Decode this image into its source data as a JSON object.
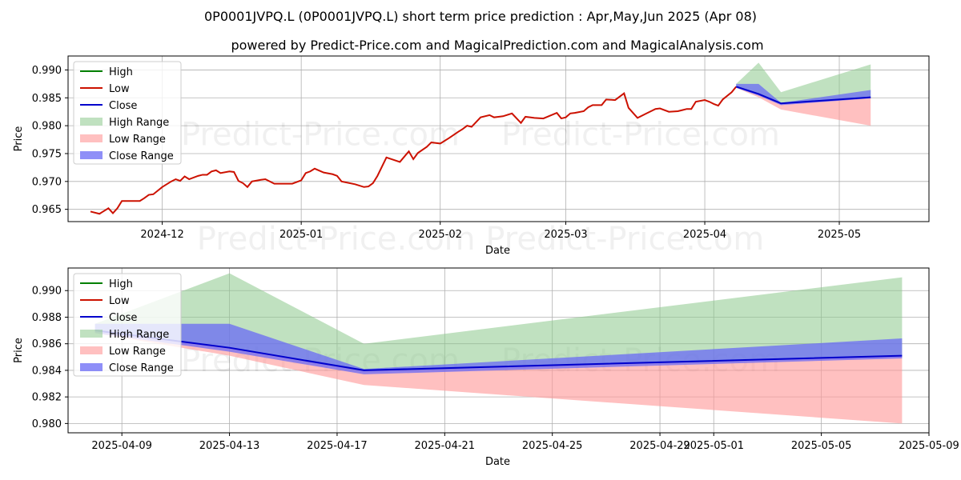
{
  "title": "0P0001JVPQ.L (0P0001JVPQ.L) short term price prediction : Apr,May,Jun 2025 (Apr 08)",
  "subtitle": "powered by Predict-Price.com and MagicalPrediction.com and MagicalAnalysis.com",
  "watermark": "Predict-Price.com",
  "colors": {
    "high": "#008000",
    "low": "#cc1100",
    "close": "#0000cc",
    "high_range": "#8cc98c",
    "low_range": "#ff9a9a",
    "close_range": "#6a6af5"
  },
  "chart_data": [
    {
      "type": "line",
      "xlabel": "Date",
      "ylabel": "Price",
      "x_ticks": [
        "2024-12",
        "2025-01",
        "2025-02",
        "2025-03",
        "2025-04",
        "2025-05"
      ],
      "y_ticks": [
        "0.965",
        "0.970",
        "0.975",
        "0.980",
        "0.985",
        "0.990"
      ],
      "xlim": [
        "2024-11-10",
        "2025-05-21"
      ],
      "ylim": [
        0.9628,
        0.9925
      ],
      "grid": true,
      "legend_position": "top-left",
      "legend": [
        "High",
        "Low",
        "Close",
        "High Range",
        "Low Range",
        "Close Range"
      ],
      "history": {
        "name": "Low",
        "x": [
          "2024-11-15",
          "2024-11-17",
          "2024-11-19",
          "2024-11-20",
          "2024-11-21",
          "2024-11-22",
          "2024-11-23",
          "2024-11-26",
          "2024-11-27",
          "2024-11-28",
          "2024-11-29",
          "2024-12-01",
          "2024-12-03",
          "2024-12-04",
          "2024-12-05",
          "2024-12-06",
          "2024-12-07",
          "2024-12-09",
          "2024-12-10",
          "2024-12-11",
          "2024-12-12",
          "2024-12-13",
          "2024-12-14",
          "2024-12-16",
          "2024-12-17",
          "2024-12-18",
          "2024-12-19",
          "2024-12-20",
          "2024-12-21",
          "2024-12-23",
          "2024-12-24",
          "2024-12-26",
          "2024-12-27",
          "2024-12-30",
          "2025-01-01",
          "2025-01-02",
          "2025-01-03",
          "2025-01-04",
          "2025-01-06",
          "2025-01-08",
          "2025-01-09",
          "2025-01-10",
          "2025-01-13",
          "2025-01-15",
          "2025-01-16",
          "2025-01-17",
          "2025-01-18",
          "2025-01-20",
          "2025-01-23",
          "2025-01-25",
          "2025-01-26",
          "2025-01-27",
          "2025-01-29",
          "2025-01-30",
          "2025-02-01",
          "2025-02-03",
          "2025-02-05",
          "2025-02-06",
          "2025-02-07",
          "2025-02-08",
          "2025-02-10",
          "2025-02-12",
          "2025-02-13",
          "2025-02-14",
          "2025-02-15",
          "2025-02-17",
          "2025-02-19",
          "2025-02-20",
          "2025-02-21",
          "2025-02-22",
          "2025-02-24",
          "2025-02-27",
          "2025-02-28",
          "2025-03-01",
          "2025-03-02",
          "2025-03-03",
          "2025-03-05",
          "2025-03-06",
          "2025-03-07",
          "2025-03-09",
          "2025-03-10",
          "2025-03-12",
          "2025-03-14",
          "2025-03-15",
          "2025-03-17",
          "2025-03-19",
          "2025-03-20",
          "2025-03-21",
          "2025-03-22",
          "2025-03-24",
          "2025-03-26",
          "2025-03-27",
          "2025-03-28",
          "2025-03-29",
          "2025-03-30",
          "2025-04-01",
          "2025-04-02",
          "2025-04-03",
          "2025-04-04",
          "2025-04-05",
          "2025-04-07",
          "2025-04-08"
        ],
        "y": [
          0.9646,
          0.9642,
          0.9652,
          0.9643,
          0.9652,
          0.9665,
          0.9665,
          0.9665,
          0.967,
          0.9676,
          0.9677,
          0.969,
          0.97,
          0.9704,
          0.9701,
          0.9709,
          0.9704,
          0.971,
          0.9712,
          0.9712,
          0.9718,
          0.972,
          0.9715,
          0.9718,
          0.9717,
          0.9701,
          0.9697,
          0.969,
          0.97,
          0.9703,
          0.9704,
          0.9696,
          0.9696,
          0.9696,
          0.9702,
          0.9715,
          0.9718,
          0.9723,
          0.9716,
          0.9713,
          0.971,
          0.97,
          0.9695,
          0.969,
          0.9691,
          0.9697,
          0.971,
          0.9743,
          0.9735,
          0.9754,
          0.974,
          0.9751,
          0.9762,
          0.977,
          0.9768,
          0.9778,
          0.9789,
          0.9794,
          0.98,
          0.9798,
          0.9815,
          0.9819,
          0.9815,
          0.9816,
          0.9817,
          0.9822,
          0.9805,
          0.9816,
          0.9815,
          0.9814,
          0.9813,
          0.9823,
          0.9813,
          0.9815,
          0.9822,
          0.9823,
          0.9826,
          0.9833,
          0.9837,
          0.9837,
          0.9847,
          0.9846,
          0.9858,
          0.9832,
          0.9814,
          0.9822,
          0.9826,
          0.983,
          0.9831,
          0.9825,
          0.9826,
          0.9828,
          0.983,
          0.983,
          0.9843,
          0.9846,
          0.9843,
          0.9839,
          0.9836,
          0.9847,
          0.986,
          0.987
        ]
      },
      "forecast": {
        "x": [
          "2025-04-08",
          "2025-04-13",
          "2025-04-18",
          "2025-05-08"
        ],
        "high_range_top": [
          0.9875,
          0.9913,
          0.986,
          0.991
        ],
        "low_range_bottom": [
          0.9868,
          0.9851,
          0.9829,
          0.98
        ],
        "close_range_top": [
          0.9875,
          0.9875,
          0.9841,
          0.9864
        ],
        "close_range_bottom": [
          0.9868,
          0.9854,
          0.9837,
          0.9849
        ],
        "close": [
          0.987,
          0.9857,
          0.984,
          0.9851
        ]
      }
    },
    {
      "type": "line",
      "xlabel": "Date",
      "ylabel": "Price",
      "x_ticks": [
        "2025-04-09",
        "2025-04-13",
        "2025-04-17",
        "2025-04-21",
        "2025-04-25",
        "2025-04-29",
        "2025-05-01",
        "2025-05-05",
        "2025-05-09"
      ],
      "y_ticks": [
        "0.980",
        "0.982",
        "0.984",
        "0.986",
        "0.988",
        "0.990"
      ],
      "xlim": [
        "2025-04-07",
        "2025-05-09"
      ],
      "ylim": [
        0.9793,
        0.9917
      ],
      "grid": true,
      "legend_position": "top-left",
      "legend": [
        "High",
        "Low",
        "Close",
        "High Range",
        "Low Range",
        "Close Range"
      ],
      "forecast": {
        "x": [
          "2025-04-08",
          "2025-04-13",
          "2025-04-18",
          "2025-05-08"
        ],
        "high_range_top": [
          0.9875,
          0.9913,
          0.986,
          0.991
        ],
        "low_range_bottom": [
          0.9868,
          0.9851,
          0.9829,
          0.98
        ],
        "close_range_top": [
          0.9875,
          0.9875,
          0.9841,
          0.9864
        ],
        "close_range_bottom": [
          0.9868,
          0.9854,
          0.9837,
          0.9849
        ],
        "close": [
          0.987,
          0.9857,
          0.984,
          0.9851
        ]
      }
    }
  ]
}
